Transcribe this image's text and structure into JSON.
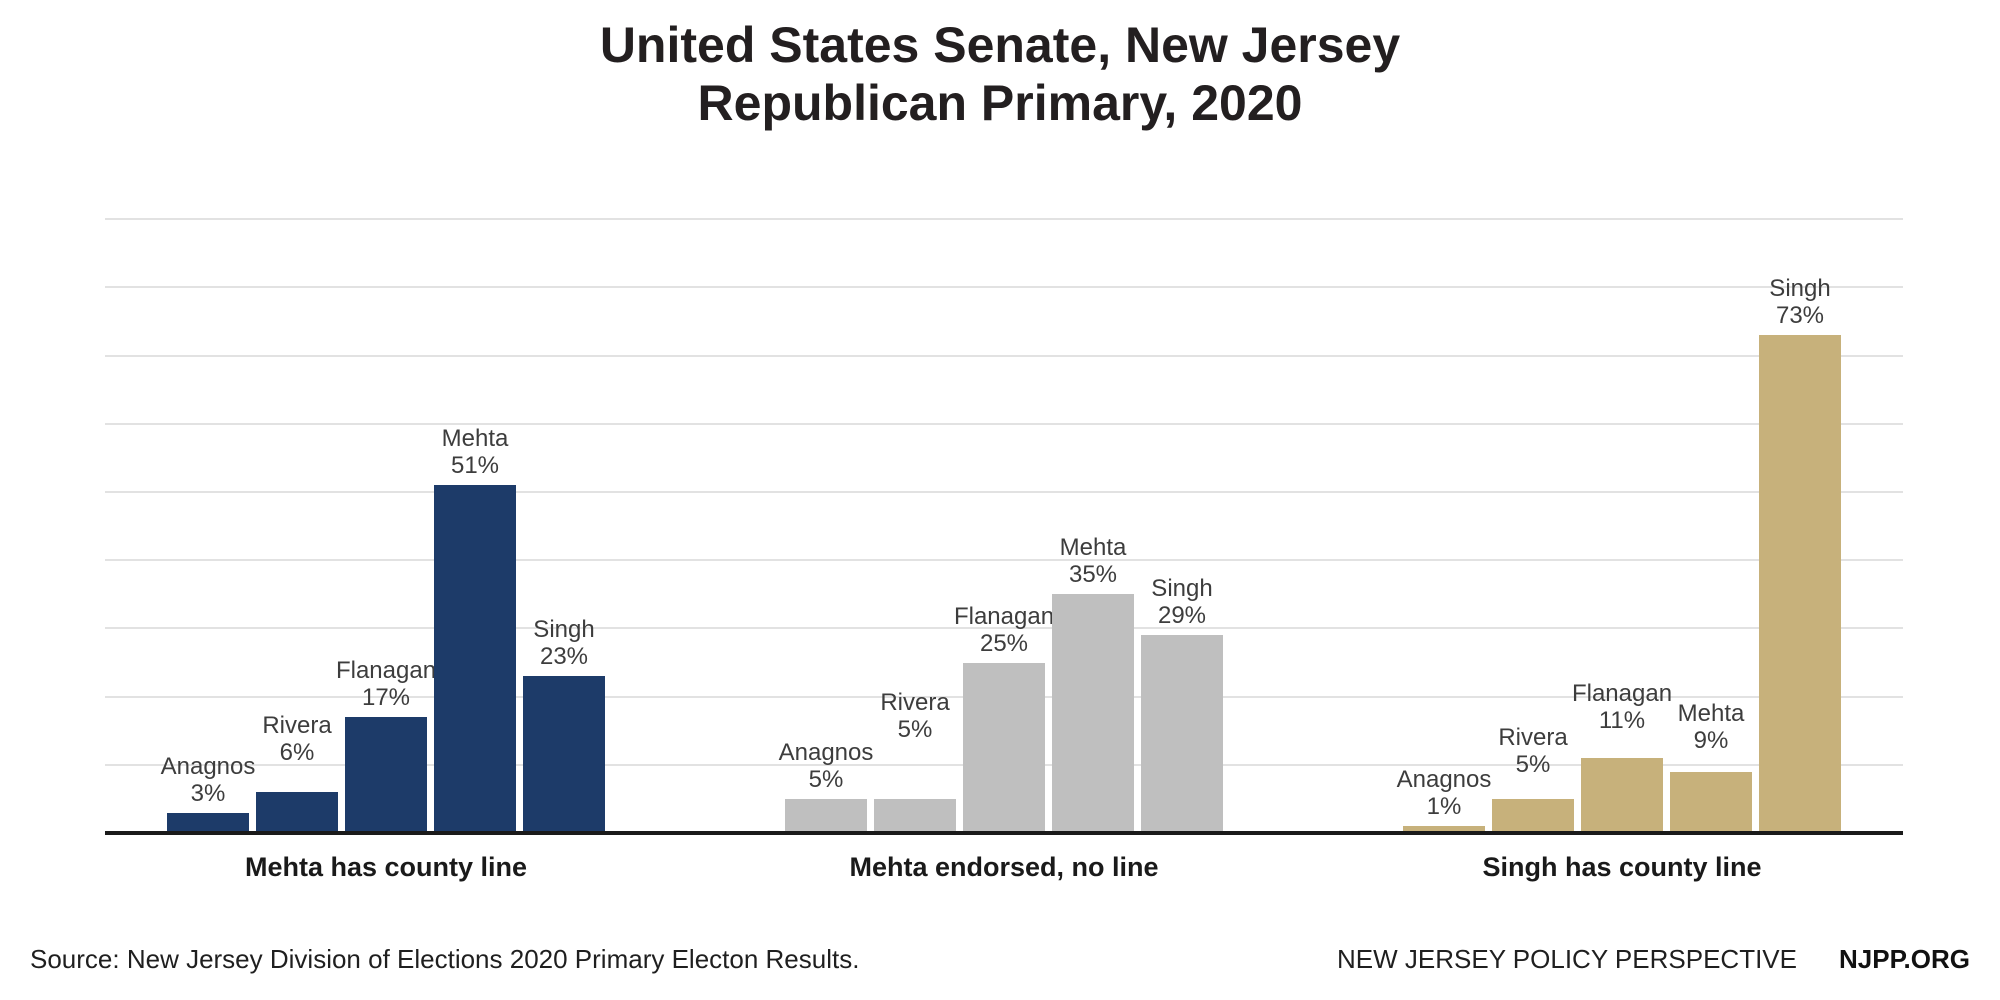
{
  "title": {
    "line1": "United States Senate, New Jersey",
    "line2": "Republican Primary, 2020"
  },
  "chart_data": {
    "type": "bar",
    "title": "United States Senate, New Jersey Republican Primary, 2020",
    "xlabel": "",
    "ylabel": "",
    "ylim": [
      0,
      90
    ],
    "gridline_step_pct": 10,
    "grid": true,
    "legend": "none",
    "y_axis_labels_visible": false,
    "categories": [
      "Anagnos",
      "Rivera",
      "Flanagan",
      "Mehta",
      "Singh"
    ],
    "groups": [
      {
        "label": "Mehta has county line",
        "color": "#1d3b69",
        "bars": [
          {
            "name": "Anagnos",
            "value": 3,
            "pct": "3%",
            "raise": 0
          },
          {
            "name": "Rivera",
            "value": 6,
            "pct": "6%",
            "raise": 20
          },
          {
            "name": "Flanagan",
            "value": 17,
            "pct": "17%",
            "raise": 0
          },
          {
            "name": "Mehta",
            "value": 51,
            "pct": "51%",
            "raise": 0
          },
          {
            "name": "Singh",
            "value": 23,
            "pct": "23%",
            "raise": 0
          }
        ]
      },
      {
        "label": "Mehta endorsed, no line",
        "color": "#bfbfbf",
        "bars": [
          {
            "name": "Anagnos",
            "value": 5,
            "pct": "5%",
            "raise": 0
          },
          {
            "name": "Rivera",
            "value": 5,
            "pct": "5%",
            "raise": 50
          },
          {
            "name": "Flanagan",
            "value": 25,
            "pct": "25%",
            "raise": 0
          },
          {
            "name": "Mehta",
            "value": 35,
            "pct": "35%",
            "raise": 0
          },
          {
            "name": "Singh",
            "value": 29,
            "pct": "29%",
            "raise": 0
          }
        ]
      },
      {
        "label": "Singh has county line",
        "color": "#c7b17b",
        "bars": [
          {
            "name": "Anagnos",
            "value": 1,
            "pct": "1%",
            "raise": 0
          },
          {
            "name": "Rivera",
            "value": 5,
            "pct": "5%",
            "raise": 15
          },
          {
            "name": "Flanagan",
            "value": 11,
            "pct": "11%",
            "raise": 18
          },
          {
            "name": "Mehta",
            "value": 9,
            "pct": "9%",
            "raise": 12
          },
          {
            "name": "Singh",
            "value": 73,
            "pct": "73%",
            "raise": 0
          }
        ]
      }
    ]
  },
  "footer": {
    "source": "Source: New Jersey Division of Elections 2020 Primary Electon Results.",
    "publisher": "NEW JERSEY POLICY PERSPECTIVE",
    "org": "NJPP.ORG"
  },
  "colors": {
    "navy": "#1d3b69",
    "gray": "#bfbfbf",
    "tan": "#c7b17b",
    "gridline": "#e2e2e2",
    "axis": "#1a1a1a",
    "bar_label": "#3d3d3d",
    "title": "#231f20"
  }
}
